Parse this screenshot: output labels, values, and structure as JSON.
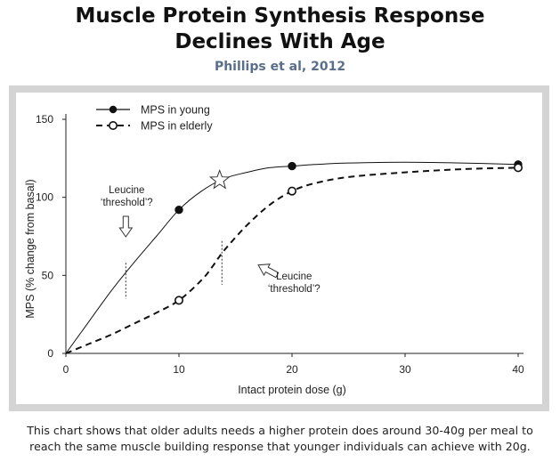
{
  "title_lines": [
    "Muscle Protein Synthesis Response",
    "Declines With Age"
  ],
  "subtitle": "Phillips et al, 2012",
  "caption_lines": [
    "This chart shows that older adults needs a higher protein does around 30-40g per meal to",
    "reach the same muscle building response that younger individuals can achieve with 20g."
  ],
  "chart_data": {
    "type": "line",
    "title": "",
    "xlabel": "Intact protein dose (g)",
    "ylabel": "MPS (% change from basal)",
    "xlim": [
      0,
      40
    ],
    "ylim": [
      0,
      150
    ],
    "xticks": [
      "0",
      "10",
      "20",
      "30",
      "40"
    ],
    "yticks": [
      "0",
      "50",
      "100",
      "150"
    ],
    "grid": false,
    "legend_position": "top-left",
    "series": [
      {
        "name": "MPS in young",
        "line_style": "solid",
        "marker": "filled-circle",
        "points": [
          [
            0,
            0
          ],
          [
            10,
            92
          ],
          [
            20,
            120
          ],
          [
            40,
            121
          ]
        ],
        "curve": [
          [
            0,
            0
          ],
          [
            2,
            20
          ],
          [
            4,
            40
          ],
          [
            6,
            58
          ],
          [
            8,
            75
          ],
          [
            10,
            92
          ],
          [
            12,
            104
          ],
          [
            14,
            112
          ],
          [
            16,
            116
          ],
          [
            18,
            119
          ],
          [
            20,
            120
          ],
          [
            22,
            121
          ],
          [
            25,
            122
          ],
          [
            30,
            122.5
          ],
          [
            35,
            122
          ],
          [
            40,
            121
          ]
        ]
      },
      {
        "name": "MPS in elderly",
        "line_style": "dashed",
        "marker": "open-circle",
        "points": [
          [
            0,
            0
          ],
          [
            10,
            34
          ],
          [
            20,
            104
          ],
          [
            40,
            119
          ]
        ],
        "curve": [
          [
            0,
            0
          ],
          [
            2,
            6
          ],
          [
            4,
            12
          ],
          [
            6,
            19
          ],
          [
            8,
            26
          ],
          [
            10,
            34
          ],
          [
            12,
            47
          ],
          [
            13,
            56
          ],
          [
            14,
            66
          ],
          [
            16,
            82
          ],
          [
            18,
            95
          ],
          [
            20,
            104
          ],
          [
            22,
            109
          ],
          [
            25,
            113
          ],
          [
            30,
            116
          ],
          [
            35,
            118
          ],
          [
            40,
            119
          ]
        ]
      }
    ],
    "annotations": [
      {
        "lines": [
          "Leucine",
          "‘threshold’?"
        ],
        "x": 5.3,
        "arrow": "down"
      },
      {
        "lines": [
          "Leucine",
          "‘threshold’?"
        ],
        "x": 13.8,
        "arrow": "up-left"
      }
    ],
    "star_marker": {
      "x": 13.6,
      "y": 111
    }
  }
}
